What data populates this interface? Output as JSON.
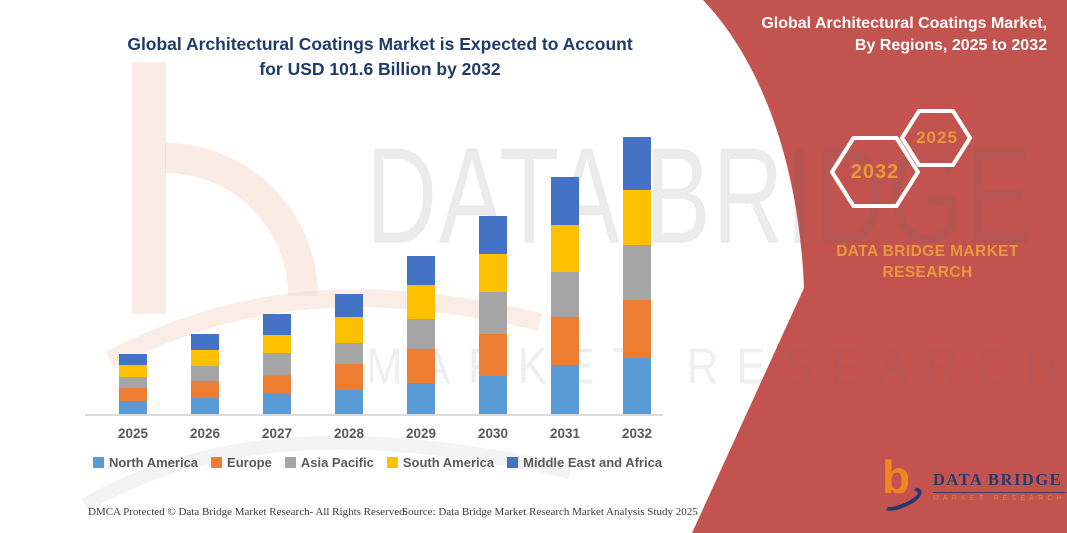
{
  "header": {
    "title_line1": "Global Architectural Coatings Market is Expected to Account",
    "title_line2": "for USD 101.6 Billion by 2032"
  },
  "side_panel": {
    "bg_color": "#c2534f",
    "heading_line1": "Global Architectural Coatings Market,",
    "heading_line2": "By Regions, 2025 to 2032",
    "hex_badges": [
      {
        "label": "2032"
      },
      {
        "label": "2025"
      }
    ],
    "brand_line1": "DATA BRIDGE MARKET",
    "brand_line2": "RESEARCH",
    "accent_color": "#e79a3b"
  },
  "watermark": {
    "line1": "DATA BRIDGE",
    "line2": "MARKET RESEARCH"
  },
  "chart_data": {
    "type": "bar",
    "stacked": true,
    "title": "Global Architectural Coatings Market is Expected to Account for USD 101.6 Billion by 2032",
    "unit": "USD billion",
    "categories": [
      "2025",
      "2026",
      "2027",
      "2028",
      "2029",
      "2030",
      "2031",
      "2032"
    ],
    "series": [
      {
        "name": "North America",
        "color": "#5b9bd5",
        "values": [
          4.8,
          5.9,
          7.3,
          8.8,
          11.4,
          13.9,
          18.0,
          20.5
        ]
      },
      {
        "name": "Europe",
        "color": "#ed7d31",
        "values": [
          4.8,
          6.2,
          7.0,
          9.5,
          12.5,
          15.4,
          17.6,
          21.3
        ]
      },
      {
        "name": "Asia Pacific",
        "color": "#a5a5a5",
        "values": [
          4.0,
          5.5,
          8.1,
          7.7,
          11.0,
          15.4,
          16.5,
          20.2
        ]
      },
      {
        "name": "South America",
        "color": "#ffc000",
        "values": [
          4.4,
          5.9,
          6.6,
          9.5,
          12.5,
          13.9,
          17.2,
          20.2
        ]
      },
      {
        "name": "Middle East and Africa",
        "color": "#4472c4",
        "values": [
          4.0,
          5.9,
          7.7,
          8.4,
          10.6,
          13.9,
          17.6,
          19.4
        ]
      }
    ],
    "totals": [
      22.0,
      29.4,
      36.7,
      44.0,
      58.0,
      72.6,
      86.9,
      101.6
    ],
    "ylim": [
      0,
      105
    ],
    "gridlines": false,
    "legend_position": "bottom"
  },
  "footer": {
    "dmca": "DMCA Protected © Data Bridge Market Research-  All Rights Reserved.",
    "source": "Source: Data Bridge Market Research  Market Analysis Study 2025"
  },
  "logo": {
    "name": "DATA BRIDGE",
    "subtitle": "MARKET RESEARCH"
  }
}
